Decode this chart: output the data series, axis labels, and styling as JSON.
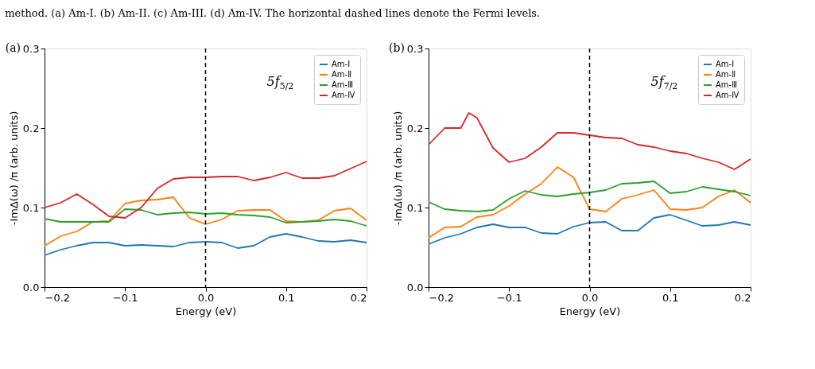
{
  "chart_data": [
    {
      "type": "line",
      "title": "(a)",
      "xlabel": "Energy (eV)",
      "ylabel": "-ImΔ(ω) /π (arb. units)",
      "annotations": [
        "5f$_{5/2}$",
        "method. (a) Am-I. (b) Am-II. (c) Am-III. (d) Am-IV. The horizontal dashed lines denote the Fermi levels."
      ],
      "x": [
        -0.2,
        -0.18,
        -0.16,
        -0.14,
        -0.12,
        -0.1,
        -0.08,
        -0.06,
        -0.04,
        -0.02,
        0,
        0.02,
        0.04,
        0.06,
        0.08,
        0.1,
        0.12,
        0.14,
        0.16,
        0.18,
        0.2
      ],
      "series": [
        {
          "name": "Am-Ⅰ",
          "color": "#1f77b4",
          "values": [
            0.04,
            0.047,
            0.052,
            0.056,
            0.056,
            0.052,
            0.053,
            0.052,
            0.051,
            0.056,
            0.057,
            0.056,
            0.049,
            0.052,
            0.063,
            0.067,
            0.063,
            0.058,
            0.057,
            0.059,
            0.056
          ]
        },
        {
          "name": "Am-Ⅱ",
          "color": "#ff7f0e",
          "values": [
            0.052,
            0.064,
            0.07,
            0.082,
            0.083,
            0.105,
            0.109,
            0.11,
            0.113,
            0.087,
            0.079,
            0.085,
            0.096,
            0.097,
            0.097,
            0.083,
            0.082,
            0.084,
            0.096,
            0.099,
            0.084
          ]
        },
        {
          "name": "Am-Ⅲ",
          "color": "#2ca02c",
          "values": [
            0.086,
            0.082,
            0.082,
            0.082,
            0.082,
            0.098,
            0.097,
            0.091,
            0.093,
            0.094,
            0.092,
            0.093,
            0.091,
            0.09,
            0.088,
            0.081,
            0.082,
            0.083,
            0.085,
            0.083,
            0.077
          ]
        },
        {
          "name": "Am-Ⅳ",
          "color": "#d62728",
          "values": [
            0.1,
            0.106,
            0.117,
            0.104,
            0.089,
            0.087,
            0.1,
            0.124,
            0.136,
            0.138,
            0.138,
            0.139,
            0.139,
            0.134,
            0.138,
            0.144,
            0.137,
            0.137,
            0.14,
            0.149,
            0.158
          ]
        }
      ],
      "xlim": [
        -0.2,
        0.2
      ],
      "xticks": [
        {
          "value": -0.2,
          "label": "−0.2"
        },
        {
          "value": -0.1,
          "label": "−0.1"
        },
        {
          "value": 0,
          "label": "0.0"
        },
        {
          "value": 0.1,
          "label": "0.1"
        },
        {
          "value": 0.2,
          "label": "0.2"
        }
      ],
      "ylim": [
        0,
        0.3
      ],
      "yticks": [
        {
          "value": 0,
          "label": "0.0"
        },
        {
          "value": 0.1,
          "label": "0.1"
        },
        {
          "value": 0.2,
          "label": "0.2"
        },
        {
          "value": 0.3,
          "label": "0.3"
        }
      ],
      "ref_lines": [
        {
          "axis": "x",
          "value": 0,
          "label": null,
          "color": "#000000",
          "line_style": "dashed"
        }
      ],
      "legend": "top right",
      "grid": false
    },
    {
      "type": "line",
      "title": "(b)",
      "xlabel": "Energy (eV)",
      "ylabel": "-ImΔ(ω) /π (arb. units)",
      "annotations": [
        "5f$_{7/2}$"
      ],
      "x": [
        -0.2,
        -0.18,
        -0.16,
        -0.14,
        -0.12,
        -0.1,
        -0.08,
        -0.06,
        -0.04,
        -0.02,
        0,
        0.02,
        0.04,
        0.06,
        0.08,
        0.1,
        0.12,
        0.14,
        0.16,
        0.18,
        0.2
      ],
      "series": [
        {
          "name": "Am-Ⅰ",
          "color": "#1f77b4",
          "values": [
            0.054,
            0.062,
            0.067,
            0.075,
            0.079,
            0.075,
            0.075,
            0.068,
            0.067,
            0.076,
            0.081,
            0.082,
            0.071,
            0.071,
            0.087,
            0.091,
            0.084,
            0.077,
            0.078,
            0.082,
            0.078
          ]
        },
        {
          "name": "Am-Ⅱ",
          "color": "#ff7f0e",
          "values": [
            0.062,
            0.075,
            0.076,
            0.088,
            0.091,
            0.102,
            0.117,
            0.13,
            0.151,
            0.138,
            0.098,
            0.095,
            0.111,
            0.116,
            0.122,
            0.098,
            0.097,
            0.1,
            0.114,
            0.122,
            0.106
          ]
        },
        {
          "name": "Am-Ⅲ",
          "color": "#2ca02c",
          "values": [
            0.107,
            0.098,
            0.096,
            0.095,
            0.097,
            0.111,
            0.121,
            0.116,
            0.114,
            0.117,
            0.119,
            0.122,
            0.13,
            0.131,
            0.133,
            0.118,
            0.12,
            0.126,
            0.123,
            0.12,
            0.115
          ]
        },
        {
          "name": "Am-Ⅳ",
          "color": "#d62728",
          "x": [
            -0.2,
            -0.18,
            -0.16,
            -0.15,
            -0.14,
            -0.12,
            -0.1,
            -0.08,
            -0.06,
            -0.04,
            -0.02,
            0,
            0.02,
            0.04,
            0.06,
            0.08,
            0.1,
            0.12,
            0.14,
            0.16,
            0.18,
            0.2
          ],
          "values": [
            0.179,
            0.2,
            0.2,
            0.219,
            0.213,
            0.175,
            0.157,
            0.162,
            0.176,
            0.194,
            0.194,
            0.191,
            0.188,
            0.187,
            0.179,
            0.176,
            0.171,
            0.168,
            0.162,
            0.157,
            0.148,
            0.161
          ]
        }
      ],
      "xlim": [
        -0.2,
        0.2
      ],
      "xticks": [
        {
          "value": -0.2,
          "label": "−0.2"
        },
        {
          "value": -0.1,
          "label": "−0.1"
        },
        {
          "value": 0,
          "label": "0.0"
        },
        {
          "value": 0.1,
          "label": "0.1"
        },
        {
          "value": 0.2,
          "label": "0.2"
        }
      ],
      "ylim": [
        0,
        0.3
      ],
      "yticks": [
        {
          "value": 0,
          "label": "0.0"
        },
        {
          "value": 0.1,
          "label": "0.1"
        },
        {
          "value": 0.2,
          "label": "0.2"
        },
        {
          "value": 0.3,
          "label": "0.3"
        }
      ],
      "ref_lines": [
        {
          "axis": "x",
          "value": 0,
          "label": null,
          "color": "#000000",
          "line_style": "dashed"
        }
      ],
      "legend": "top right",
      "grid": false
    }
  ]
}
